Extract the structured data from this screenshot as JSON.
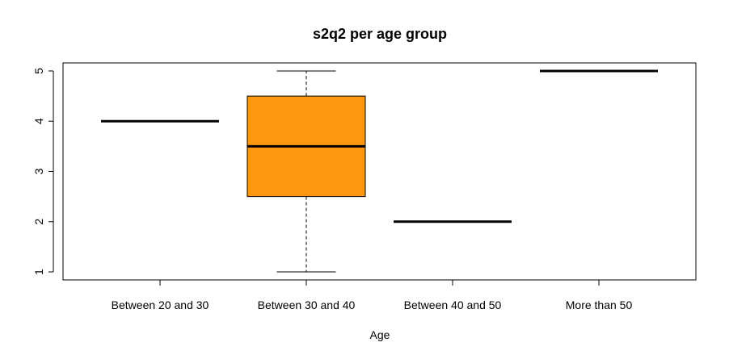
{
  "chart_data": {
    "type": "boxplot",
    "title": "s2q2 per age group",
    "xlabel": "Age",
    "ylabel": "",
    "categories": [
      "Between 20 and 30",
      "Between 30 and 40",
      "Between 40 and 50",
      "More than 50"
    ],
    "yticks": [
      1,
      2,
      3,
      4,
      5
    ],
    "ylim": [
      0.84,
      5.16
    ],
    "grid": false,
    "box_color": "#ff9810",
    "boxes": [
      {
        "category": "Between 20 and 30",
        "min": 4,
        "q1": 4,
        "median": 4,
        "q3": 4,
        "max": 4
      },
      {
        "category": "Between 30 and 40",
        "min": 1,
        "q1": 2.5,
        "median": 3.5,
        "q3": 4.5,
        "max": 5
      },
      {
        "category": "Between 40 and 50",
        "min": 2,
        "q1": 2,
        "median": 2,
        "q3": 2,
        "max": 2
      },
      {
        "category": "More than 50",
        "min": 5,
        "q1": 5,
        "median": 5,
        "q3": 5,
        "max": 5
      }
    ]
  }
}
